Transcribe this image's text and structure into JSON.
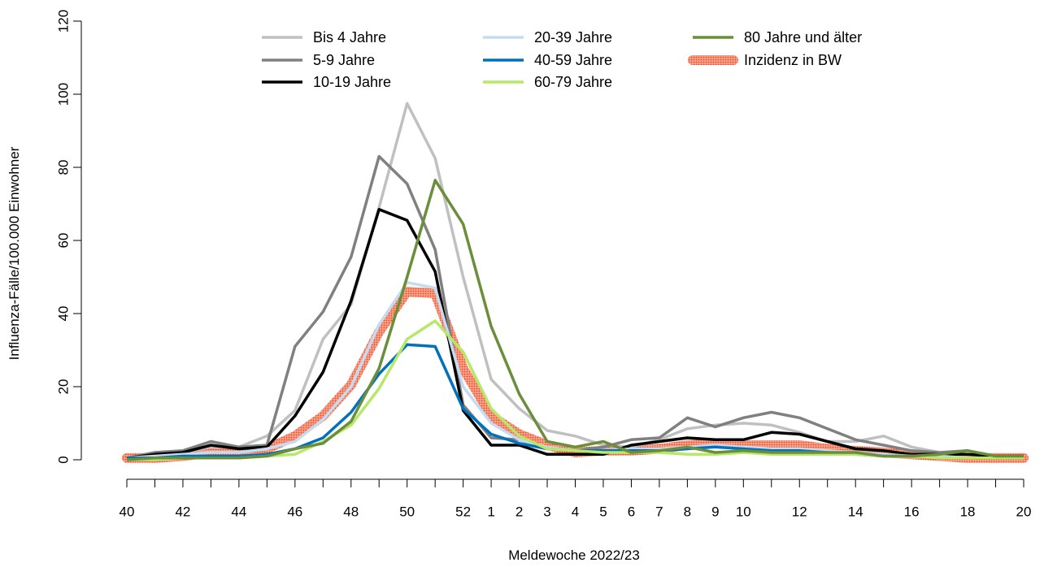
{
  "chart_data": {
    "type": "line",
    "xlabel": "Meldewoche 2022/23",
    "ylabel": "Influenza-Fälle/100.000 Einwohner",
    "ylim": [
      0,
      120
    ],
    "y_ticks": [
      "0",
      "20",
      "40",
      "60",
      "80",
      "100",
      "120"
    ],
    "x_categories": [
      "40",
      "41",
      "42",
      "43",
      "44",
      "45",
      "46",
      "47",
      "48",
      "49",
      "50",
      "51",
      "52",
      "1",
      "2",
      "3",
      "4",
      "5",
      "6",
      "7",
      "8",
      "9",
      "10",
      "11",
      "12",
      "13",
      "14",
      "15",
      "16",
      "17",
      "18",
      "19",
      "20"
    ],
    "x_tick_labels": [
      "40",
      "",
      "42",
      "",
      "44",
      "",
      "46",
      "",
      "48",
      "",
      "50",
      "",
      "52",
      "1",
      "2",
      "3",
      "4",
      "5",
      "6",
      "7",
      "8",
      "9",
      "10",
      "",
      "12",
      "",
      "14",
      "",
      "16",
      "",
      "18",
      "",
      "20"
    ],
    "legend_position": "top",
    "series": [
      {
        "name": "Bis 4 Jahre",
        "color": "#c0c0c0",
        "values": [
          0.5,
          1.5,
          2.0,
          3.5,
          3.5,
          6.5,
          13.5,
          33.0,
          42.5,
          69.0,
          97.5,
          82.5,
          50.0,
          22.0,
          14.0,
          8.0,
          6.5,
          4.0,
          3.5,
          5.5,
          8.5,
          9.5,
          10.0,
          9.5,
          7.5,
          5.0,
          5.0,
          6.5,
          3.5,
          2.0,
          1.5,
          1.0,
          1.0
        ]
      },
      {
        "name": "5-9 Jahre",
        "color": "#808080",
        "values": [
          0.5,
          2.0,
          2.5,
          5.0,
          3.5,
          4.0,
          31.0,
          40.5,
          55.5,
          83.0,
          75.5,
          57.5,
          15.0,
          6.0,
          5.5,
          3.0,
          2.5,
          3.5,
          5.5,
          6.0,
          11.5,
          9.0,
          11.5,
          13.0,
          11.5,
          8.5,
          5.5,
          4.0,
          2.5,
          2.0,
          2.5,
          1.0,
          0.5
        ]
      },
      {
        "name": "10-19 Jahre",
        "color": "#000000",
        "values": [
          0.5,
          1.5,
          2.0,
          4.0,
          3.0,
          3.5,
          12.0,
          24.0,
          43.5,
          68.5,
          65.5,
          51.5,
          13.5,
          4.0,
          4.0,
          1.5,
          1.5,
          1.5,
          4.0,
          5.0,
          6.0,
          5.5,
          5.5,
          7.5,
          7.0,
          5.0,
          3.0,
          2.5,
          1.5,
          1.5,
          1.5,
          1.0,
          1.0
        ]
      },
      {
        "name": "20-39 Jahre",
        "color": "#c6dbef",
        "values": [
          0.5,
          1.0,
          1.5,
          2.0,
          2.0,
          3.0,
          5.0,
          11.0,
          20.0,
          37.0,
          48.5,
          47.0,
          20.0,
          10.0,
          5.5,
          3.5,
          2.5,
          2.5,
          3.0,
          3.0,
          3.5,
          4.0,
          3.5,
          3.0,
          3.0,
          2.5,
          2.0,
          1.5,
          1.0,
          1.0,
          0.5,
          0.5,
          0.5
        ]
      },
      {
        "name": "40-59 Jahre",
        "color": "#0072bd",
        "values": [
          0.5,
          0.5,
          1.0,
          1.0,
          1.0,
          1.5,
          3.0,
          6.0,
          13.0,
          23.5,
          31.5,
          31.0,
          14.0,
          7.0,
          4.5,
          3.0,
          2.5,
          2.5,
          2.5,
          2.5,
          3.0,
          3.5,
          3.0,
          2.5,
          2.5,
          2.0,
          1.5,
          1.0,
          1.0,
          0.5,
          0.5,
          0.5,
          0.5
        ]
      },
      {
        "name": "60-79 Jahre",
        "color": "#b8e86a",
        "values": [
          0.0,
          0.0,
          0.5,
          0.5,
          0.5,
          1.0,
          1.5,
          5.0,
          9.5,
          19.5,
          33.0,
          38.0,
          29.5,
          14.0,
          6.5,
          3.0,
          2.5,
          2.0,
          2.0,
          2.0,
          1.5,
          1.5,
          2.0,
          1.5,
          1.5,
          1.5,
          1.5,
          1.0,
          1.0,
          0.5,
          0.5,
          0.5,
          0.5
        ]
      },
      {
        "name": "80 Jahre und älter",
        "color": "#6b8e3a",
        "values": [
          0.0,
          0.5,
          0.5,
          0.5,
          0.5,
          1.0,
          3.0,
          4.5,
          10.5,
          25.0,
          50.0,
          76.5,
          64.5,
          36.5,
          18.0,
          5.0,
          3.5,
          5.0,
          2.0,
          2.5,
          3.5,
          2.0,
          2.5,
          2.0,
          2.0,
          2.0,
          2.0,
          1.0,
          1.0,
          1.5,
          2.5,
          1.0,
          1.0
        ]
      },
      {
        "name": "Inzidenz in BW",
        "color": "#f4795c",
        "values": [
          0.5,
          0.5,
          1.0,
          2.0,
          2.0,
          3.0,
          6.5,
          12.0,
          20.5,
          35.0,
          46.0,
          45.5,
          25.0,
          12.0,
          7.0,
          4.0,
          2.0,
          2.5,
          2.5,
          3.0,
          4.0,
          4.5,
          4.0,
          4.0,
          4.0,
          3.0,
          2.5,
          2.0,
          1.5,
          1.0,
          0.5,
          0.5,
          0.5
        ]
      }
    ]
  }
}
